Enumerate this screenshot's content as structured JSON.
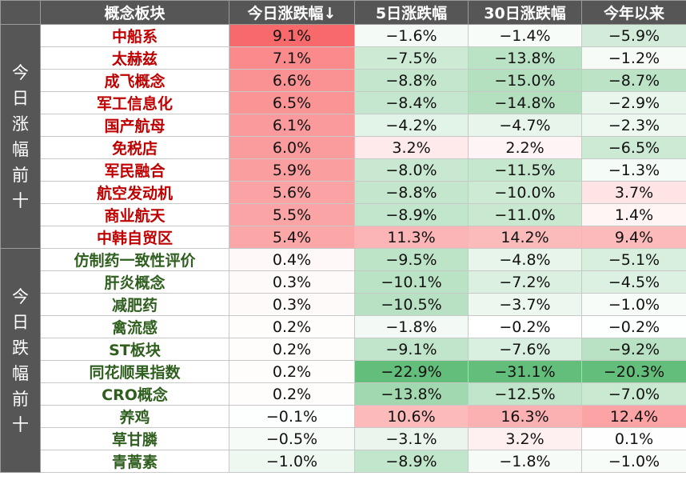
{
  "header": {
    "corner": "",
    "concept": "概念板块",
    "today": "今日涨跌幅↓",
    "d5": "5日涨跌幅",
    "d30": "30日涨跌幅",
    "ytd": "今年以来"
  },
  "groups": [
    {
      "label": "今日涨幅前十",
      "type": "up"
    },
    {
      "label": "今日跌幅前十",
      "type": "down"
    }
  ],
  "colors": {
    "positive_max": "#f8696b",
    "negative_max": "#63be7b",
    "neutral": "#ffffff"
  },
  "rows": [
    {
      "name": "中船系",
      "g": 0,
      "today": 9.1,
      "d5": -1.6,
      "d30": -1.4,
      "ytd": -5.9
    },
    {
      "name": "太赫兹",
      "g": 0,
      "today": 7.1,
      "d5": -7.5,
      "d30": -13.8,
      "ytd": -1.2
    },
    {
      "name": "成飞概念",
      "g": 0,
      "today": 6.6,
      "d5": -8.8,
      "d30": -15.0,
      "ytd": -8.7
    },
    {
      "name": "军工信息化",
      "g": 0,
      "today": 6.5,
      "d5": -8.4,
      "d30": -14.8,
      "ytd": -2.9
    },
    {
      "name": "国产航母",
      "g": 0,
      "today": 6.1,
      "d5": -4.2,
      "d30": -4.7,
      "ytd": -2.3
    },
    {
      "name": "免税店",
      "g": 0,
      "today": 6.0,
      "d5": 3.2,
      "d30": 2.2,
      "ytd": -6.5
    },
    {
      "name": "军民融合",
      "g": 0,
      "today": 5.9,
      "d5": -8.0,
      "d30": -11.5,
      "ytd": -1.3
    },
    {
      "name": "航空发动机",
      "g": 0,
      "today": 5.6,
      "d5": -8.8,
      "d30": -10.0,
      "ytd": 3.7
    },
    {
      "name": "商业航天",
      "g": 0,
      "today": 5.5,
      "d5": -8.9,
      "d30": -11.0,
      "ytd": 1.4
    },
    {
      "name": "中韩自贸区",
      "g": 0,
      "today": 5.4,
      "d5": 11.3,
      "d30": 14.2,
      "ytd": 9.4
    },
    {
      "name": "仿制药一致性评价",
      "g": 1,
      "today": 0.4,
      "d5": -9.5,
      "d30": -4.8,
      "ytd": -5.1
    },
    {
      "name": "肝炎概念",
      "g": 1,
      "today": 0.3,
      "d5": -10.1,
      "d30": -7.2,
      "ytd": -4.5
    },
    {
      "name": "减肥药",
      "g": 1,
      "today": 0.3,
      "d5": -10.5,
      "d30": -3.7,
      "ytd": -1.0
    },
    {
      "name": "禽流感",
      "g": 1,
      "today": 0.2,
      "d5": -1.8,
      "d30": -0.2,
      "ytd": -0.2
    },
    {
      "name": "ST板块",
      "g": 1,
      "today": 0.2,
      "d5": -9.1,
      "d30": -7.6,
      "ytd": -9.2
    },
    {
      "name": "同花顺果指数",
      "g": 1,
      "today": 0.2,
      "d5": -22.9,
      "d30": -31.1,
      "ytd": -20.3
    },
    {
      "name": "CRO概念",
      "g": 1,
      "today": 0.2,
      "d5": -13.8,
      "d30": -12.5,
      "ytd": -7.0
    },
    {
      "name": "养鸡",
      "g": 1,
      "today": -0.1,
      "d5": 10.6,
      "d30": 16.3,
      "ytd": 12.4
    },
    {
      "name": "草甘膦",
      "g": 1,
      "today": -0.5,
      "d5": -3.1,
      "d30": 3.2,
      "ytd": 0.1
    },
    {
      "name": "青蒿素",
      "g": 1,
      "today": -1.0,
      "d5": -8.9,
      "d30": -1.8,
      "ytd": -1.0
    }
  ]
}
